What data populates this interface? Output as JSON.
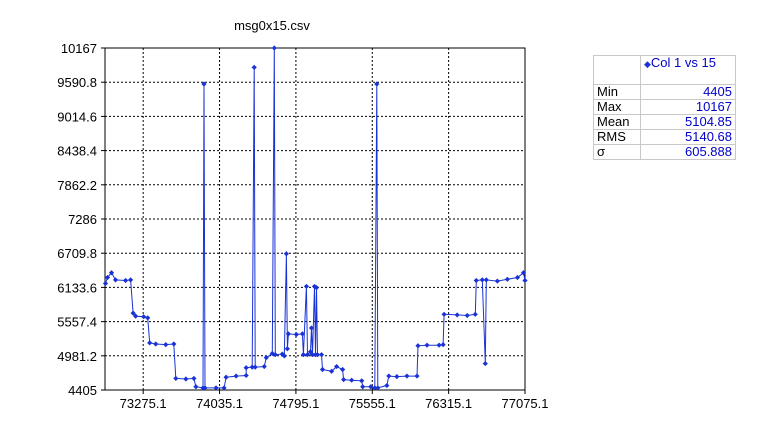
{
  "chart_data": {
    "type": "scatter",
    "title": "msg0x15.csv",
    "xlabel": "",
    "ylabel": "",
    "xlim": [
      72895.1,
      77075.1
    ],
    "ylim": [
      4405,
      10167
    ],
    "x_ticks": [
      "73275.1",
      "74035.1",
      "74795.1",
      "75555.1",
      "76315.1",
      "77075.1"
    ],
    "x_tick_values": [
      73275.1,
      74035.1,
      74795.1,
      75555.1,
      76315.1,
      77075.1
    ],
    "y_ticks": [
      "10167",
      "9590.8",
      "9014.6",
      "8438.4",
      "7862.2",
      "7286",
      "6709.8",
      "6133.6",
      "5557.4",
      "4981.2",
      "4405"
    ],
    "y_tick_values": [
      10167,
      9590.8,
      9014.6,
      8438.4,
      7862.2,
      7286,
      6709.8,
      6133.6,
      5557.4,
      4981.2,
      4405
    ],
    "grid": true,
    "legend_position": "right",
    "series": [
      {
        "name": "Col 1 vs 15",
        "color": "#1a33d6",
        "marker": "diamond",
        "points": [
          [
            72900,
            6200
          ],
          [
            72920,
            6300
          ],
          [
            72960,
            6380
          ],
          [
            73000,
            6260
          ],
          [
            73100,
            6250
          ],
          [
            73150,
            6260
          ],
          [
            73175,
            5700
          ],
          [
            73200,
            5650
          ],
          [
            73280,
            5640
          ],
          [
            73320,
            5620
          ],
          [
            73340,
            5200
          ],
          [
            73400,
            5180
          ],
          [
            73500,
            5170
          ],
          [
            73580,
            5180
          ],
          [
            73600,
            4600
          ],
          [
            73700,
            4590
          ],
          [
            73780,
            4600
          ],
          [
            73800,
            4460
          ],
          [
            73870,
            4440
          ],
          [
            73880,
            9560
          ],
          [
            73890,
            4440
          ],
          [
            74000,
            4440
          ],
          [
            74080,
            4440
          ],
          [
            74100,
            4620
          ],
          [
            74200,
            4640
          ],
          [
            74300,
            4650
          ],
          [
            74300,
            4780
          ],
          [
            74360,
            4790
          ],
          [
            74380,
            9840
          ],
          [
            74390,
            4790
          ],
          [
            74480,
            4800
          ],
          [
            74500,
            4950
          ],
          [
            74560,
            5020
          ],
          [
            74580,
            10167
          ],
          [
            74590,
            5000
          ],
          [
            74660,
            5010
          ],
          [
            74680,
            4980
          ],
          [
            74700,
            6700
          ],
          [
            74710,
            5100
          ],
          [
            74720,
            5350
          ],
          [
            74800,
            5340
          ],
          [
            74860,
            5350
          ],
          [
            74870,
            5000
          ],
          [
            74900,
            6150
          ],
          [
            74910,
            5000
          ],
          [
            74940,
            5050
          ],
          [
            74950,
            5450
          ],
          [
            74960,
            5000
          ],
          [
            74980,
            6150
          ],
          [
            74990,
            5000
          ],
          [
            75000,
            6130
          ],
          [
            75010,
            5000
          ],
          [
            75050,
            5000
          ],
          [
            75060,
            4750
          ],
          [
            75150,
            4720
          ],
          [
            75200,
            4800
          ],
          [
            75260,
            4750
          ],
          [
            75270,
            4580
          ],
          [
            75350,
            4570
          ],
          [
            75450,
            4560
          ],
          [
            75460,
            4460
          ],
          [
            75540,
            4460
          ],
          [
            75580,
            4440
          ],
          [
            75600,
            9560
          ],
          [
            75610,
            4440
          ],
          [
            75700,
            4480
          ],
          [
            75720,
            4640
          ],
          [
            75800,
            4630
          ],
          [
            75900,
            4640
          ],
          [
            76000,
            4640
          ],
          [
            76010,
            5150
          ],
          [
            76100,
            5160
          ],
          [
            76220,
            5160
          ],
          [
            76260,
            5170
          ],
          [
            76270,
            5680
          ],
          [
            76400,
            5670
          ],
          [
            76500,
            5660
          ],
          [
            76580,
            5680
          ],
          [
            76590,
            6250
          ],
          [
            76650,
            6260
          ],
          [
            76680,
            4850
          ],
          [
            76690,
            6260
          ],
          [
            76800,
            6240
          ],
          [
            76900,
            6270
          ],
          [
            77000,
            6300
          ],
          [
            77060,
            6380
          ],
          [
            77075,
            6250
          ]
        ]
      }
    ],
    "stats": {
      "header": "Col 1 vs 15",
      "rows": [
        {
          "label": "Min",
          "value": "4405"
        },
        {
          "label": "Max",
          "value": "10167"
        },
        {
          "label": "Mean",
          "value": "5104.85"
        },
        {
          "label": "RMS",
          "value": "5140.68"
        },
        {
          "label": "σ",
          "value": "605.888"
        }
      ]
    }
  }
}
